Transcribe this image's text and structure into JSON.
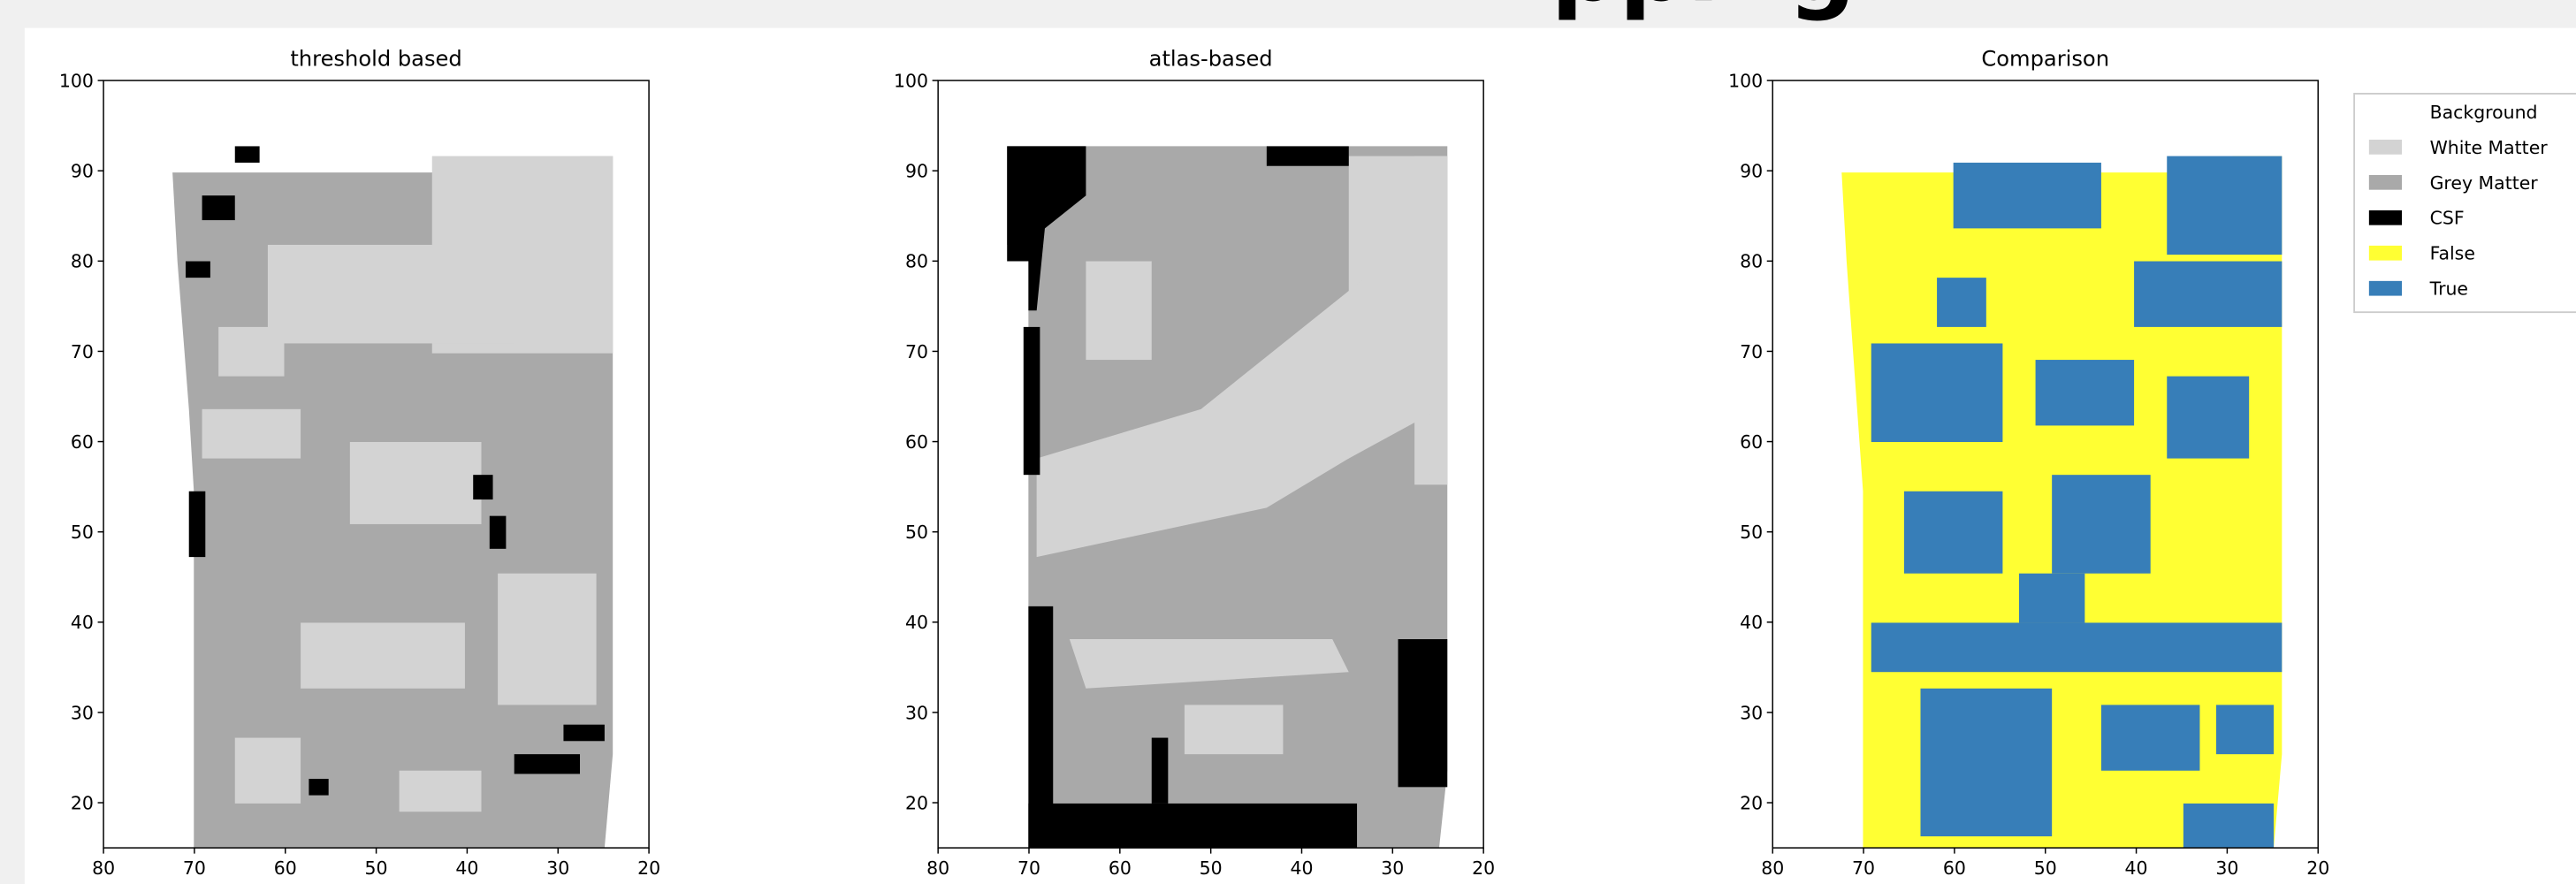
{
  "header": "pping",
  "chart_data": [
    {
      "type": "image",
      "title": "threshold based",
      "xlim": [
        80,
        20
      ],
      "ylim": [
        15,
        100
      ],
      "xticks": [
        80,
        70,
        60,
        50,
        40,
        30,
        20
      ],
      "yticks": [
        20,
        30,
        40,
        50,
        60,
        70,
        80,
        90,
        100
      ]
    },
    {
      "type": "image",
      "title": "atlas-based",
      "xlim": [
        80,
        20
      ],
      "ylim": [
        15,
        100
      ],
      "xticks": [
        80,
        70,
        60,
        50,
        40,
        30,
        20
      ],
      "yticks": [
        20,
        30,
        40,
        50,
        60,
        70,
        80,
        90,
        100
      ]
    },
    {
      "type": "image",
      "title": "Comparison",
      "xlim": [
        80,
        20
      ],
      "ylim": [
        15,
        100
      ],
      "xticks": [
        80,
        70,
        60,
        50,
        40,
        30,
        20
      ],
      "yticks": [
        20,
        30,
        40,
        50,
        60,
        70,
        80,
        90,
        100
      ]
    }
  ],
  "legend": {
    "entries": [
      {
        "name": "Background",
        "color": "#ffffff"
      },
      {
        "name": "White Matter",
        "color": "#d3d3d3"
      },
      {
        "name": "Grey Matter",
        "color": "#a9a9a9"
      },
      {
        "name": "CSF",
        "color": "#000000"
      },
      {
        "name": "False",
        "color": "#ffff33"
      },
      {
        "name": "True",
        "color": "#377eb8"
      }
    ]
  }
}
